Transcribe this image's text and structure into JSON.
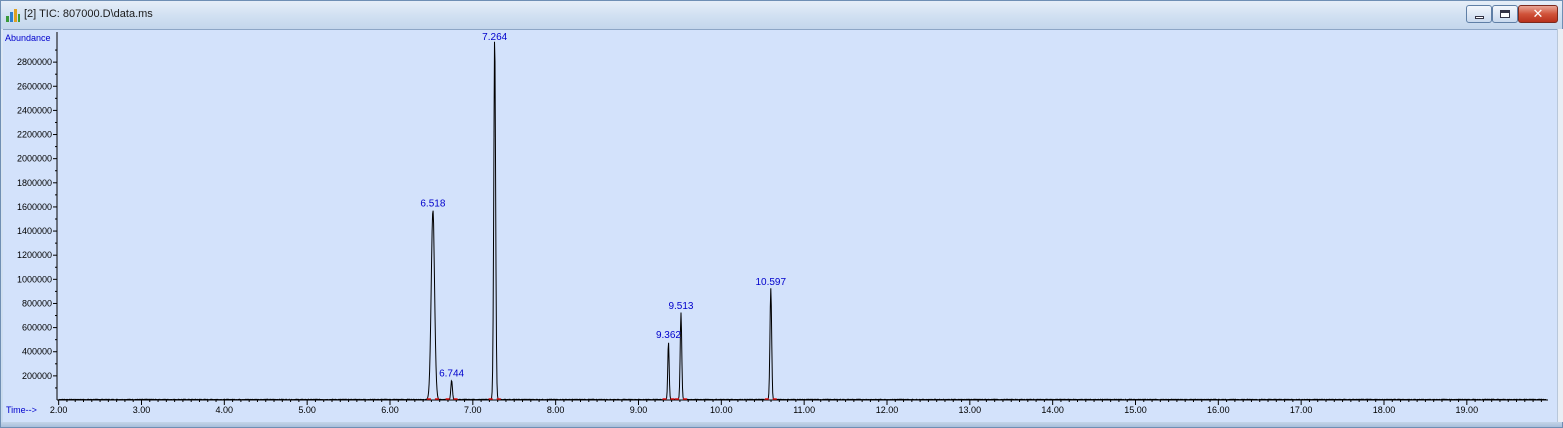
{
  "window": {
    "title": "[2] TIC: 807000.D\\data.ms",
    "icon": "chromatogram-app-icon"
  },
  "chart_data": {
    "type": "line",
    "ylabel": "Abundance",
    "xlabel": "Time-->",
    "xlim": [
      1.98,
      19.98
    ],
    "ylim": [
      0,
      3000000
    ],
    "y_ticks": [
      200000,
      400000,
      600000,
      800000,
      1000000,
      1200000,
      1400000,
      1600000,
      1800000,
      2000000,
      2200000,
      2400000,
      2600000,
      2800000
    ],
    "y_tick_labels": [
      "200000",
      "400000",
      "600000",
      "800000",
      "1000000",
      "1200000",
      "1400000",
      "1600000",
      "1800000",
      "2000000",
      "2200000",
      "2400000",
      "2600000",
      "2800000"
    ],
    "x_ticks": [
      2,
      3,
      4,
      5,
      6,
      7,
      8,
      9,
      10,
      11,
      12,
      13,
      14,
      15,
      16,
      17,
      18,
      19
    ],
    "x_tick_labels": [
      "2.00",
      "3.00",
      "4.00",
      "5.00",
      "6.00",
      "7.00",
      "8.00",
      "9.00",
      "10.00",
      "11.00",
      "12.00",
      "13.00",
      "14.00",
      "15.00",
      "16.00",
      "17.00",
      "18.00",
      "19.00"
    ],
    "grid": false,
    "series": [
      {
        "peaks": [
          {
            "rt": 6.518,
            "label": "6.518",
            "abundance": 1570000,
            "width": 0.045
          },
          {
            "rt": 6.744,
            "label": "6.744",
            "abundance": 160000,
            "width": 0.02
          },
          {
            "rt": 7.264,
            "label": "7.264",
            "abundance": 3000000,
            "width": 0.025
          },
          {
            "rt": 9.362,
            "label": "9.362",
            "abundance": 480000,
            "width": 0.018
          },
          {
            "rt": 9.513,
            "label": "9.513",
            "abundance": 720000,
            "width": 0.02
          },
          {
            "rt": 10.597,
            "label": "10.597",
            "abundance": 920000,
            "width": 0.022
          }
        ]
      }
    ]
  }
}
